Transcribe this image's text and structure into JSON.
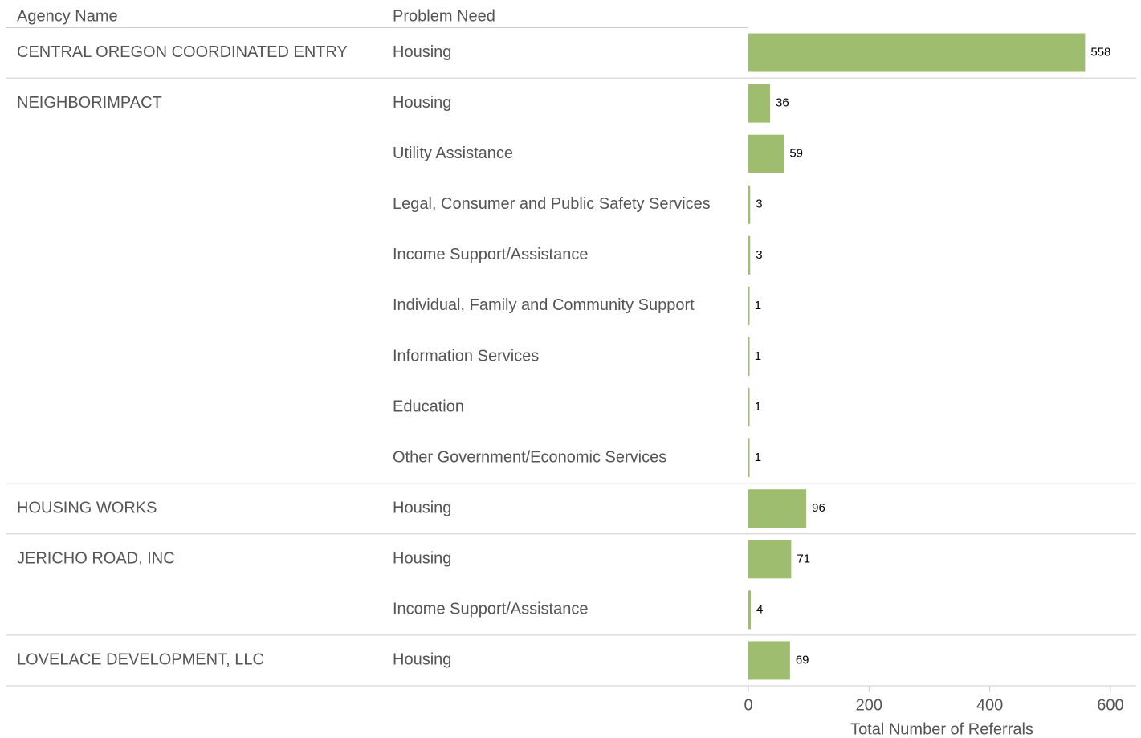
{
  "chart_data": {
    "type": "bar",
    "column_headers": [
      "Agency Name",
      "Problem Need"
    ],
    "x_label": "Total Number of Referrals",
    "xlim": [
      0,
      640
    ],
    "xticks": [
      0,
      200,
      400,
      600
    ],
    "color": "#9fbd6e",
    "agencies": [
      {
        "name": "CENTRAL OREGON COORDINATED ENTRY",
        "needs": [
          "Housing"
        ],
        "values": [
          558
        ]
      },
      {
        "name": "NEIGHBORIMPACT",
        "needs": [
          "Housing",
          "Utility Assistance",
          "Legal, Consumer and Public Safety Services",
          "Income Support/Assistance",
          "Individual, Family and Community Support",
          "Information Services",
          "Education",
          "Other Government/Economic Services"
        ],
        "values": [
          36,
          59,
          3,
          3,
          1,
          1,
          1,
          1
        ]
      },
      {
        "name": "HOUSING WORKS",
        "needs": [
          "Housing"
        ],
        "values": [
          96
        ]
      },
      {
        "name": "JERICHO ROAD, INC",
        "needs": [
          "Housing",
          "Income Support/Assistance"
        ],
        "values": [
          71,
          4
        ]
      },
      {
        "name": "LOVELACE DEVELOPMENT, LLC",
        "needs": [
          "Housing"
        ],
        "values": [
          69
        ]
      }
    ]
  }
}
